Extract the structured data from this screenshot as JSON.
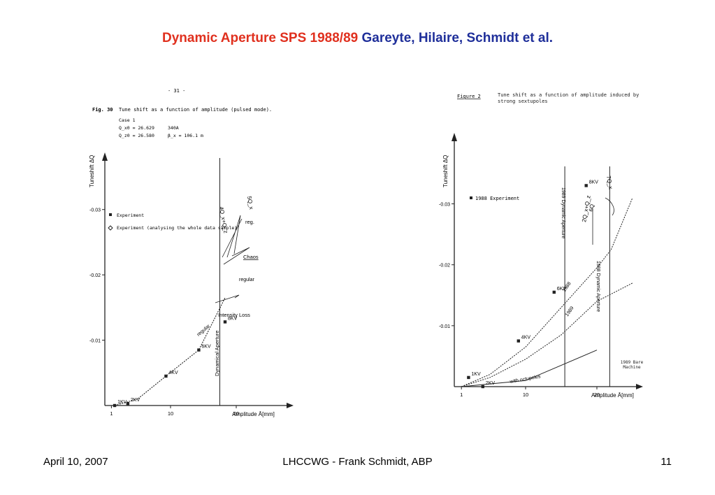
{
  "title": {
    "part1": "Dynamic Aperture SPS 1988/89",
    "part2": "Gareyte, Hilaire, Schmidt et al."
  },
  "footer": {
    "date": "April 10, 2007",
    "center": "LHCCWG - Frank Schmidt, ABP",
    "page": "11"
  },
  "colors": {
    "title_red": "#e0301e",
    "title_blue": "#1f2f9a"
  },
  "chart_data": [
    {
      "type": "scatter",
      "page_number": "- 31 -",
      "caption_fig": "Fig. 30",
      "caption_text": "Tune shift as a function of amplitude (pulsed mode).",
      "case": "Case 1",
      "params": [
        "Q_x0 = 26.629",
        "Q_z0 = 26.580",
        "340A",
        "β_x = 106.1 m"
      ],
      "ylabel": "Tuneshift ΔQ",
      "xlabel": "Amplitude Ā[mm]",
      "yticks": [
        "-0.03",
        "-0.02",
        "-0.01"
      ],
      "xticks": [
        "1",
        "10",
        "20"
      ],
      "ylim": [
        0,
        -0.035
      ],
      "xlim": [
        0,
        25
      ],
      "legend": [
        "Experiment",
        "Experiment (analysing the whole data sample)"
      ],
      "points": [
        {
          "label": "1KV",
          "x": 1.5,
          "y": 0
        },
        {
          "label": "2KV",
          "x": 3.5,
          "y": -0.0003
        },
        {
          "label": "4KV",
          "x": 9.3,
          "y": -0.0045
        },
        {
          "label": "6KV",
          "x": 14.3,
          "y": -0.0085
        },
        {
          "label": "8KV",
          "x": 18.3,
          "y": -0.0128
        }
      ],
      "curve": [
        {
          "x": 1.5,
          "y": 0
        },
        {
          "x": 5,
          "y": -0.001
        },
        {
          "x": 9.3,
          "y": -0.0045
        },
        {
          "x": 14.3,
          "y": -0.0085
        },
        {
          "x": 18.3,
          "y": -0.0165
        }
      ],
      "annotations": [
        "Dynamical Aperture",
        "Intensity Loss",
        "regular",
        "Chaos",
        "reg.",
        "4Q_x+Q_z",
        "5Q_x"
      ],
      "vline_x": 17.5
    },
    {
      "type": "scatter",
      "caption_fig": "Figure 2",
      "caption_text": "Tune shift as a function of amplitude induced by strong sextupoles",
      "ylabel": "Tuneshift ΔQ",
      "xlabel": "Amplitude Ā[mm]",
      "yticks": [
        "-0.03",
        "-0.02",
        "-0.01"
      ],
      "xticks": [
        "1",
        "10",
        "20"
      ],
      "ylim": [
        0,
        -0.035
      ],
      "xlim": [
        0,
        25
      ],
      "legend": [
        "1988 Experiment"
      ],
      "points": [
        {
          "label": "1KV",
          "x": 2,
          "y": -0.0015
        },
        {
          "label": "2KV",
          "x": 4,
          "y": 0
        },
        {
          "label": "4KV",
          "x": 9,
          "y": -0.0075
        },
        {
          "label": "6KV",
          "x": 14,
          "y": -0.0155
        },
        {
          "label": "8KV",
          "x": 18.5,
          "y": -0.033
        }
      ],
      "series": [
        {
          "name": "1988",
          "values": [
            [
              1,
              0
            ],
            [
              5,
              -0.002
            ],
            [
              10,
              -0.0065
            ],
            [
              15,
              -0.013
            ],
            [
              20,
              -0.0195
            ],
            [
              22,
              -0.0225
            ],
            [
              25,
              -0.031
            ]
          ]
        },
        {
          "name": "1989",
          "values": [
            [
              1,
              0
            ],
            [
              5,
              -0.0015
            ],
            [
              10,
              -0.0045
            ],
            [
              15,
              -0.0085
            ],
            [
              20,
              -0.014
            ],
            [
              25,
              -0.017
            ]
          ]
        },
        {
          "name": "with octupoles",
          "values": [
            [
              1,
              0
            ],
            [
              10,
              -0.001
            ],
            [
              20,
              -0.006
            ]
          ]
        }
      ],
      "annotations": [
        "1989 Dynamic Aperture",
        "1988 Dynamic Aperture",
        "2Q_x+Q_z",
        "6Q",
        "7Q_x",
        "1989 Bare Machine",
        "with octupoles"
      ],
      "vline_x": [
        15.5,
        21.8
      ]
    }
  ]
}
